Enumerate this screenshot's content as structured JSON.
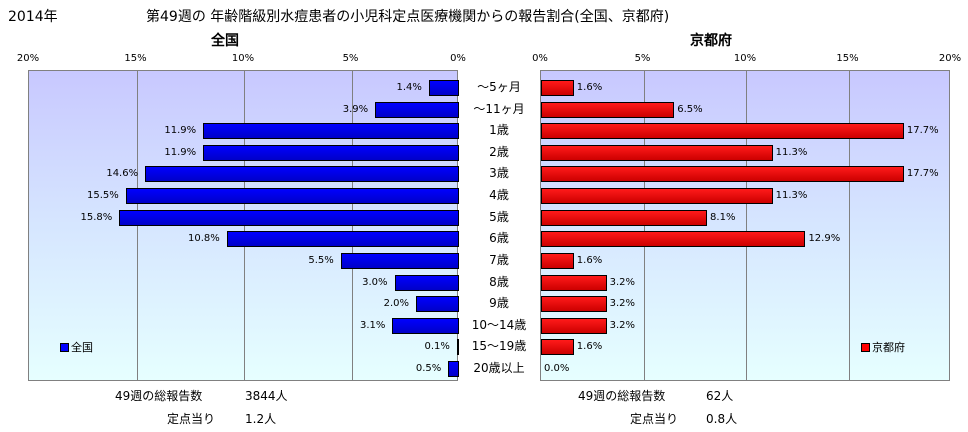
{
  "title": {
    "year": "2014年",
    "text": "第49週の 年齢階級別水痘患者の小児科定点医療機関からの報告割合(全国、京都府)"
  },
  "colors": {
    "national": "#0000ff",
    "kyoto": "#ff0000"
  },
  "chart_data": [
    {
      "type": "bar",
      "orientation": "horizontal",
      "title": "全国",
      "legend": "全国",
      "legend_position": "bottom-left",
      "xlim": [
        0,
        20
      ],
      "reversed": true,
      "tick_labels": [
        "20%",
        "15%",
        "10%",
        "5%",
        "0%"
      ],
      "ticks": [
        20,
        15,
        10,
        5,
        0
      ],
      "categories": [
        "～5ヶ月",
        "～11ヶ月",
        "1歳",
        "2歳",
        "3歳",
        "4歳",
        "5歳",
        "6歳",
        "7歳",
        "8歳",
        "9歳",
        "10～14歳",
        "15～19歳",
        "20歳以上"
      ],
      "values": [
        1.4,
        3.9,
        11.9,
        11.9,
        14.6,
        15.5,
        15.8,
        10.8,
        5.5,
        3.0,
        2.0,
        3.1,
        0.1,
        0.5
      ],
      "value_labels": [
        "1.4%",
        "3.9%",
        "11.9%",
        "11.9%",
        "14.6%",
        "15.5%",
        "15.8%",
        "10.8%",
        "5.5%",
        "3.0%",
        "2.0%",
        "3.1%",
        "0.1%",
        "0.5%"
      ]
    },
    {
      "type": "bar",
      "orientation": "horizontal",
      "title": "京都府",
      "legend": "京都府",
      "legend_position": "bottom-right",
      "xlim": [
        0,
        20
      ],
      "reversed": false,
      "tick_labels": [
        "0%",
        "5%",
        "10%",
        "15%",
        "20%"
      ],
      "ticks": [
        0,
        5,
        10,
        15,
        20
      ],
      "categories": [
        "～5ヶ月",
        "～11ヶ月",
        "1歳",
        "2歳",
        "3歳",
        "4歳",
        "5歳",
        "6歳",
        "7歳",
        "8歳",
        "9歳",
        "10～14歳",
        "15～19歳",
        "20歳以上"
      ],
      "values": [
        1.6,
        6.5,
        17.7,
        11.3,
        17.7,
        11.3,
        8.1,
        12.9,
        1.6,
        3.2,
        3.2,
        3.2,
        1.6,
        0.0
      ],
      "value_labels": [
        "1.6%",
        "6.5%",
        "17.7%",
        "11.3%",
        "17.7%",
        "11.3%",
        "8.1%",
        "12.9%",
        "1.6%",
        "3.2%",
        "3.2%",
        "3.2%",
        "1.6%",
        "0.0%"
      ]
    }
  ],
  "footer": {
    "national": {
      "reports_label": "49週の総報告数",
      "reports_value": "3844人",
      "per_site_label": "定点当り",
      "per_site_value": "1.2人"
    },
    "kyoto": {
      "reports_label": "49週の総報告数",
      "reports_value": "62人",
      "per_site_label": "定点当り",
      "per_site_value": "0.8人"
    }
  }
}
